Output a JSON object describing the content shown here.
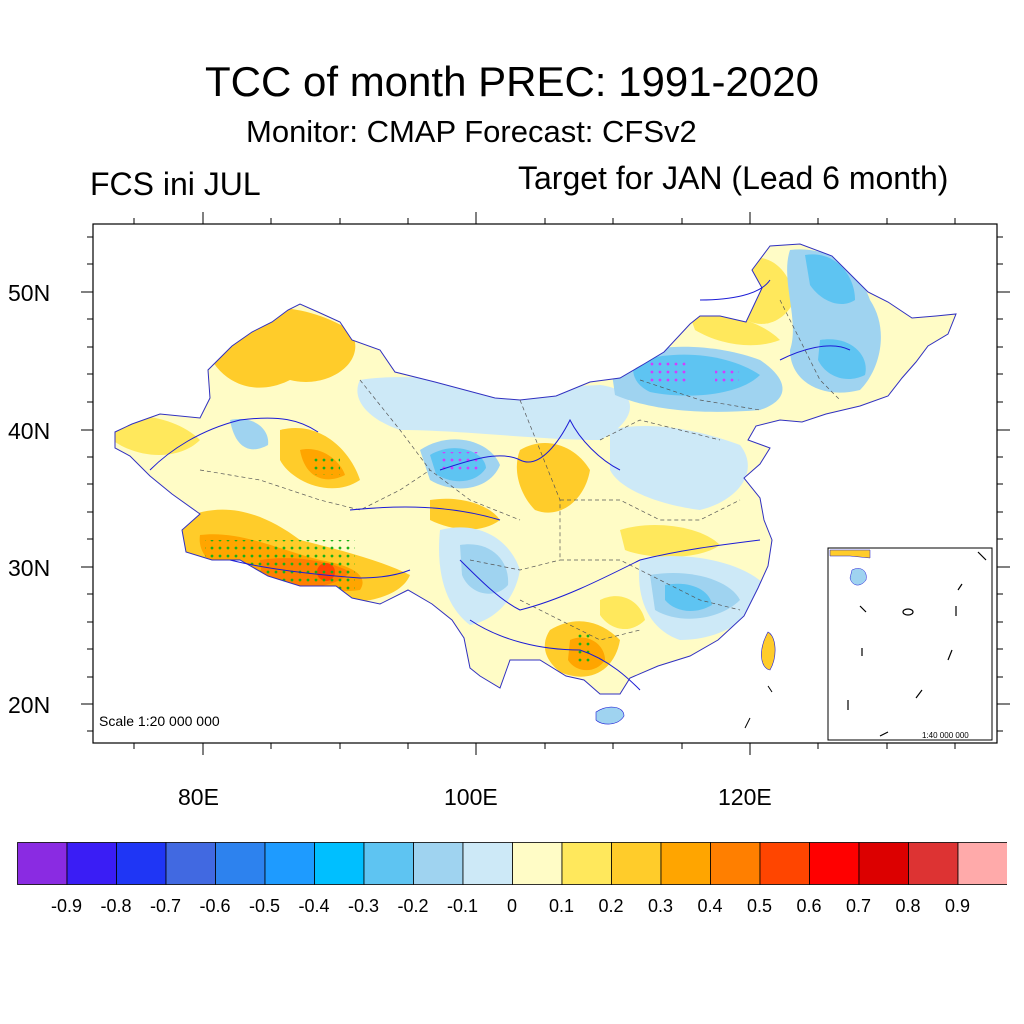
{
  "header": {
    "title": "TCC of month PREC: 1991-2020",
    "subtitle": "Monitor: CMAP   Forecast: CFSv2",
    "left_label": "FCS ini JUL",
    "right_label": "Target for JAN (Lead 6 month)"
  },
  "map": {
    "lat_ticks": [
      "50N",
      "40N",
      "30N",
      "20N"
    ],
    "lon_ticks": [
      "80E",
      "100E",
      "120E"
    ],
    "scale_main": "Scale 1:20 000 000",
    "scale_inset": "1:40 000 000"
  },
  "colorbar": {
    "labels": [
      "-0.9",
      "-0.8",
      "-0.7",
      "-0.6",
      "-0.5",
      "-0.4",
      "-0.3",
      "-0.2",
      "-0.1",
      "0",
      "0.1",
      "0.2",
      "0.3",
      "0.4",
      "0.5",
      "0.6",
      "0.7",
      "0.8",
      "0.9"
    ],
    "colors": [
      "#8a2be2",
      "#3a1df5",
      "#1f36f5",
      "#4169e1",
      "#2d82ee",
      "#1e9bff",
      "#00bfff",
      "#5ec4f2",
      "#9fd3f0",
      "#cde9f7",
      "#fffcc6",
      "#ffe85c",
      "#ffcc2a",
      "#ffa500",
      "#ff7f00",
      "#ff4500",
      "#ff0000",
      "#dc0000",
      "#dd3333",
      "#ffaaaa"
    ]
  },
  "legend_colors": {
    "boundary": "#000000",
    "rivers": "#1c1cd6",
    "significance_dots": "#18b018"
  }
}
